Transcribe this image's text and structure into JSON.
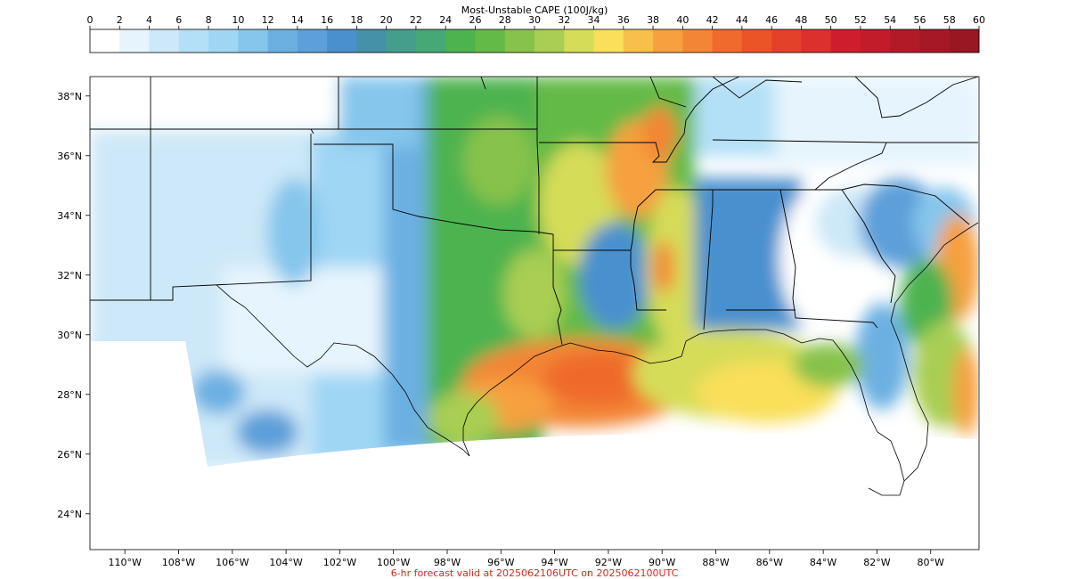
{
  "colorbar": {
    "title": "Most-Unstable CAPE (100J/kg)",
    "ticks": [
      "0",
      "2",
      "4",
      "6",
      "8",
      "10",
      "12",
      "14",
      "16",
      "18",
      "20",
      "22",
      "24",
      "26",
      "28",
      "30",
      "32",
      "34",
      "36",
      "38",
      "40",
      "42",
      "44",
      "46",
      "48",
      "50",
      "52",
      "54",
      "56",
      "58",
      "60"
    ],
    "colors": [
      "#ffffff",
      "#e6f4fd",
      "#cde8f8",
      "#b3e0f7",
      "#9fd6f4",
      "#86c6ec",
      "#6cb0e2",
      "#5d9fd9",
      "#4a90cf",
      "#4491a8",
      "#459e8c",
      "#45a876",
      "#4db34f",
      "#63ba46",
      "#87c24b",
      "#a9ce53",
      "#d5dc58",
      "#f9df5a",
      "#f8bf4a",
      "#f6a03f",
      "#f38635",
      "#ef6a2c",
      "#eb5427",
      "#e4412b",
      "#dc302d",
      "#cf1e2b",
      "#c21c2a",
      "#b31a28",
      "#a61826",
      "#991722"
    ]
  },
  "map": {
    "lat_labels": [
      "38°N",
      "36°N",
      "34°N",
      "32°N",
      "30°N",
      "28°N",
      "26°N",
      "24°N"
    ],
    "lon_labels": [
      "110°W",
      "108°W",
      "106°W",
      "104°W",
      "102°W",
      "100°W",
      "98°W",
      "96°W",
      "94°W",
      "92°W",
      "90°W",
      "88°W",
      "86°W",
      "84°W",
      "82°W",
      "80°W"
    ],
    "lat_values": [
      38,
      36,
      34,
      32,
      30,
      28,
      26,
      24
    ],
    "lon_values": [
      -110,
      -108,
      -106,
      -104,
      -102,
      -100,
      -98,
      -96,
      -94,
      -92,
      -90,
      -88,
      -86,
      -84,
      -82,
      -80
    ],
    "extent": {
      "west": -111.3,
      "east": -78.2,
      "south": 22.8,
      "north": 38.65
    }
  },
  "footer": "6-hr forecast valid at 2025062106UTC on 2025062100UTC"
}
